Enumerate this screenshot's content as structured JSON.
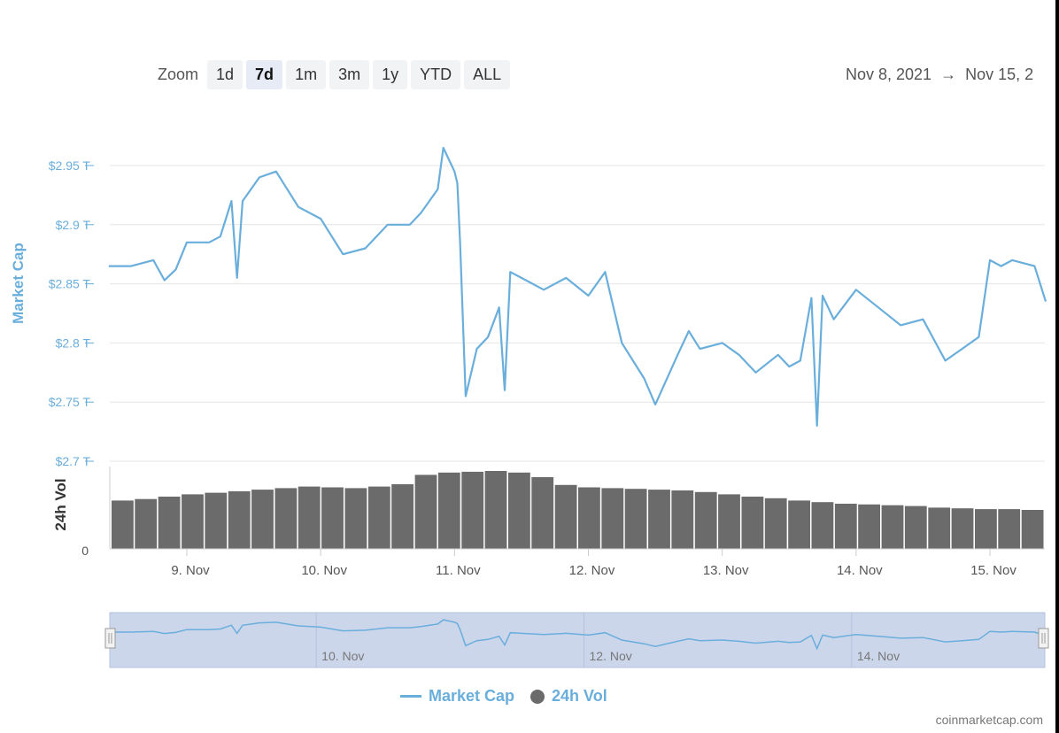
{
  "zoom": {
    "label": "Zoom",
    "options": [
      "1d",
      "7d",
      "1m",
      "3m",
      "1y",
      "YTD",
      "ALL"
    ],
    "selected": "7d"
  },
  "date_range": {
    "from": "Nov 8, 2021",
    "arrow": "→",
    "to": "Nov 15, 2"
  },
  "legend": {
    "market_cap": "Market Cap",
    "vol": "24h Vol"
  },
  "credit": "coinmarketcap.com",
  "colors": {
    "market_cap": "#6aaedb",
    "volume": "#6b6b6b",
    "navigator_fill": "#ccd6eb",
    "grid": "#e6e6e6"
  },
  "chart_data": [
    {
      "type": "line",
      "ylabel": "Market Cap",
      "x_unit": "date (Nov 2021)",
      "ylim": [
        2.7,
        2.98
      ],
      "y_ticks": [
        2.7,
        2.75,
        2.8,
        2.85,
        2.9,
        2.95
      ],
      "y_tick_labels": [
        "$2.7 T",
        "$2.75 T",
        "$2.8 T",
        "$2.85 T",
        "$2.9 T",
        "$2.95 T"
      ],
      "x_ticks": [
        "9. Nov",
        "10. Nov",
        "11. Nov",
        "12. Nov",
        "13. Nov",
        "14. Nov",
        "15. Nov"
      ],
      "grid": true,
      "series": [
        {
          "name": "Market Cap",
          "x": [
            "Nov 8 10:00",
            "Nov 8 14:00",
            "Nov 8 18:00",
            "Nov 8 20:00",
            "Nov 8 22:00",
            "Nov 9 00:00",
            "Nov 9 04:00",
            "Nov 9 06:00",
            "Nov 9 08:00",
            "Nov 9 09:00",
            "Nov 9 10:00",
            "Nov 9 13:00",
            "Nov 9 16:00",
            "Nov 9 20:00",
            "Nov 10 00:00",
            "Nov 10 02:00",
            "Nov 10 04:00",
            "Nov 10 08:00",
            "Nov 10 12:00",
            "Nov 10 16:00",
            "Nov 10 18:00",
            "Nov 10 21:00",
            "Nov 10 22:00",
            "Nov 11 00:00",
            "Nov 11 00:30",
            "Nov 11 01:00",
            "Nov 11 02:00",
            "Nov 11 04:00",
            "Nov 11 06:00",
            "Nov 11 08:00",
            "Nov 11 09:00",
            "Nov 11 10:00",
            "Nov 11 12:00",
            "Nov 11 16:00",
            "Nov 11 20:00",
            "Nov 12 00:00",
            "Nov 12 03:00",
            "Nov 12 06:00",
            "Nov 12 10:00",
            "Nov 12 12:00",
            "Nov 12 16:00",
            "Nov 12 18:00",
            "Nov 12 20:00",
            "Nov 13 00:00",
            "Nov 13 03:00",
            "Nov 13 06:00",
            "Nov 13 10:00",
            "Nov 13 12:00",
            "Nov 13 14:00",
            "Nov 13 16:00",
            "Nov 13 17:00",
            "Nov 13 18:00",
            "Nov 13 20:00",
            "Nov 14 00:00",
            "Nov 14 04:00",
            "Nov 14 08:00",
            "Nov 14 12:00",
            "Nov 14 16:00",
            "Nov 14 19:00",
            "Nov 14 22:00",
            "Nov 15 00:00",
            "Nov 15 02:00",
            "Nov 15 04:00",
            "Nov 15 08:00",
            "Nov 15 10:00"
          ],
          "values": [
            2.865,
            2.865,
            2.87,
            2.853,
            2.862,
            2.885,
            2.885,
            2.89,
            2.92,
            2.855,
            2.92,
            2.94,
            2.945,
            2.915,
            2.905,
            2.89,
            2.875,
            2.88,
            2.9,
            2.9,
            2.91,
            2.93,
            2.965,
            2.945,
            2.935,
            2.885,
            2.755,
            2.795,
            2.805,
            2.83,
            2.76,
            2.86,
            2.855,
            2.845,
            2.855,
            2.84,
            2.86,
            2.8,
            2.77,
            2.748,
            2.79,
            2.81,
            2.795,
            2.8,
            2.79,
            2.775,
            2.79,
            2.78,
            2.785,
            2.838,
            2.73,
            2.84,
            2.82,
            2.845,
            2.83,
            2.815,
            2.82,
            2.785,
            2.795,
            2.805,
            2.87,
            2.865,
            2.87,
            2.865,
            2.835
          ]
        }
      ]
    },
    {
      "type": "bar",
      "ylabel": "24h Vol",
      "y_tick_labels": [
        "0"
      ],
      "series": [
        {
          "name": "24h Vol",
          "values_relative": [
            0.62,
            0.64,
            0.67,
            0.7,
            0.72,
            0.74,
            0.76,
            0.78,
            0.8,
            0.79,
            0.78,
            0.8,
            0.83,
            0.95,
            0.98,
            0.99,
            1.0,
            0.98,
            0.92,
            0.82,
            0.79,
            0.78,
            0.77,
            0.76,
            0.75,
            0.73,
            0.7,
            0.67,
            0.65,
            0.62,
            0.6,
            0.58,
            0.57,
            0.56,
            0.55,
            0.53,
            0.52,
            0.51,
            0.51,
            0.5
          ]
        }
      ]
    },
    {
      "type": "area",
      "name": "navigator",
      "x_tick_labels": [
        "10. Nov",
        "12. Nov",
        "14. Nov"
      ]
    }
  ]
}
